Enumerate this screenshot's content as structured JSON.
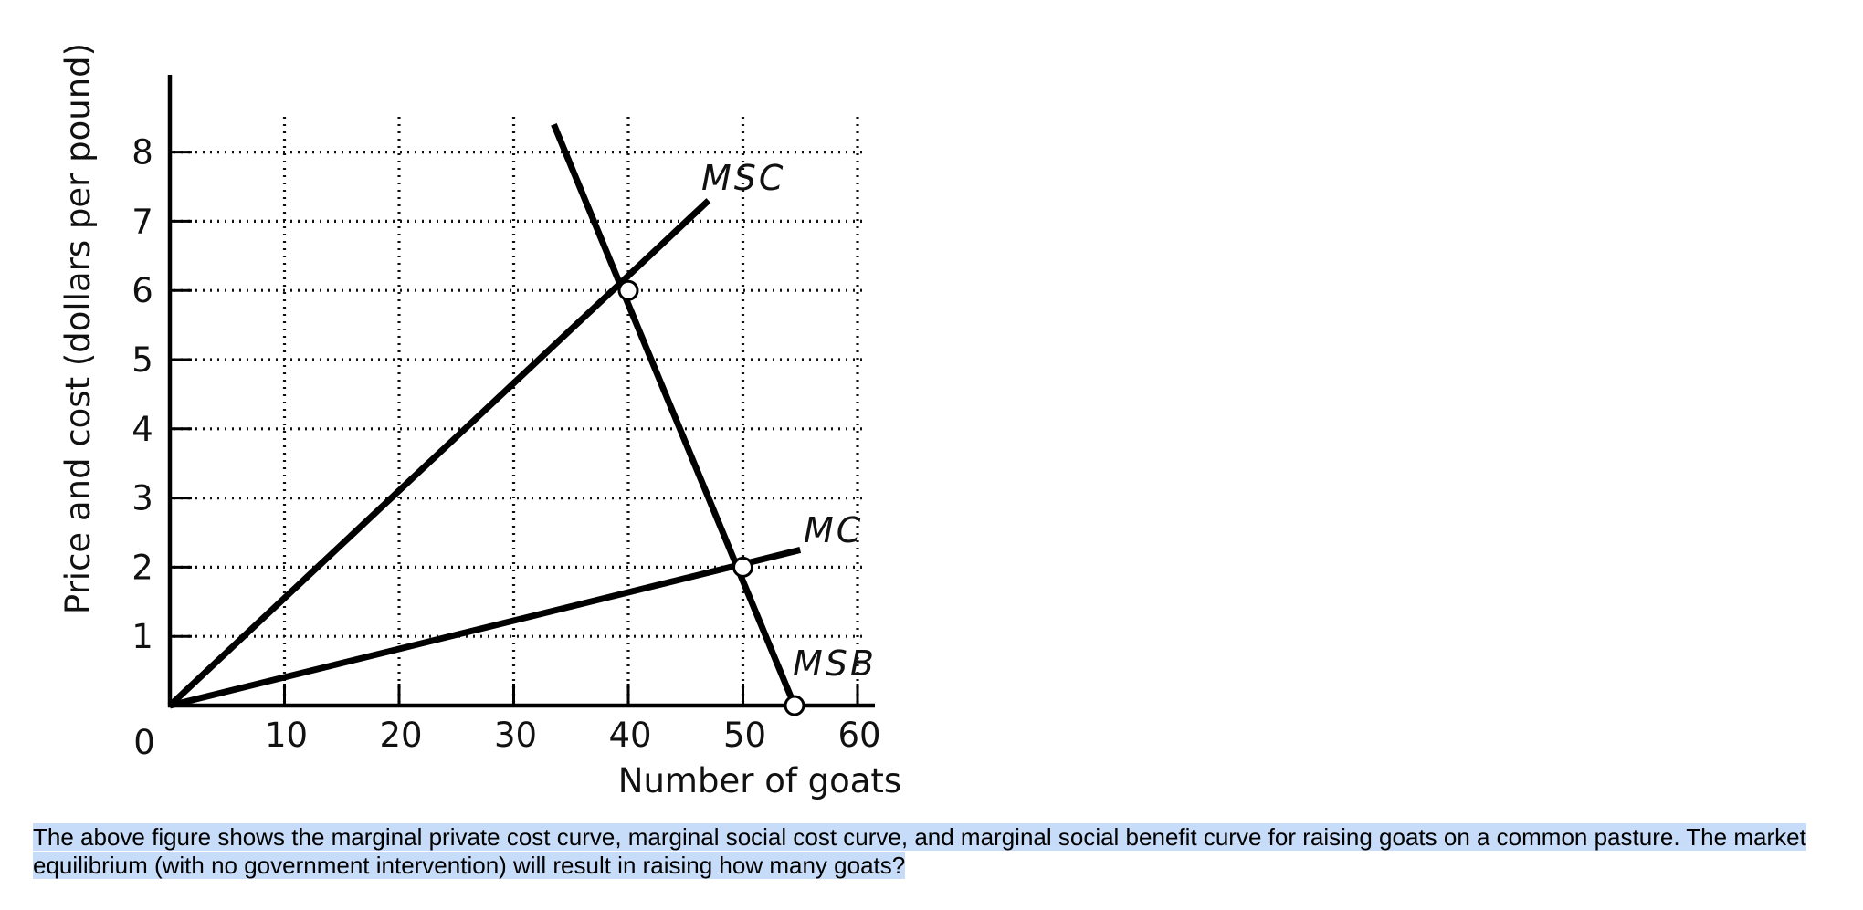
{
  "chart_data": {
    "type": "line",
    "title": "",
    "xlabel": "Number of goats",
    "ylabel": "Price and cost (dollars per pound)",
    "origin_label": "0",
    "xlim": [
      0,
      62
    ],
    "ylim": [
      0,
      9
    ],
    "x_ticks": [
      10,
      20,
      30,
      40,
      50,
      60
    ],
    "y_ticks": [
      1,
      2,
      3,
      4,
      5,
      6,
      7,
      8
    ],
    "grid": "dotted",
    "series": [
      {
        "name": "MSC",
        "label": "MSC",
        "x": [
          0,
          47
        ],
        "y": [
          0,
          7.3
        ]
      },
      {
        "name": "MC",
        "label": "MC",
        "x": [
          0,
          55
        ],
        "y": [
          0,
          2.25
        ]
      },
      {
        "name": "MSB",
        "label": "MSB",
        "x": [
          33.5,
          54.5
        ],
        "y": [
          8.4,
          0
        ]
      }
    ],
    "points": [
      {
        "name": "MSC-MSB intersection",
        "x": 40,
        "y": 6
      },
      {
        "name": "MC-MSB intersection",
        "x": 50,
        "y": 2
      },
      {
        "name": "MSB x-intercept",
        "x": 54.5,
        "y": 0
      }
    ]
  },
  "question": {
    "text": "The above figure shows the marginal private cost curve, marginal social cost curve, and marginal social benefit curve for raising goats on a common pasture. The market equilibrium (with no government intervention) will result in raising how many goats?"
  }
}
